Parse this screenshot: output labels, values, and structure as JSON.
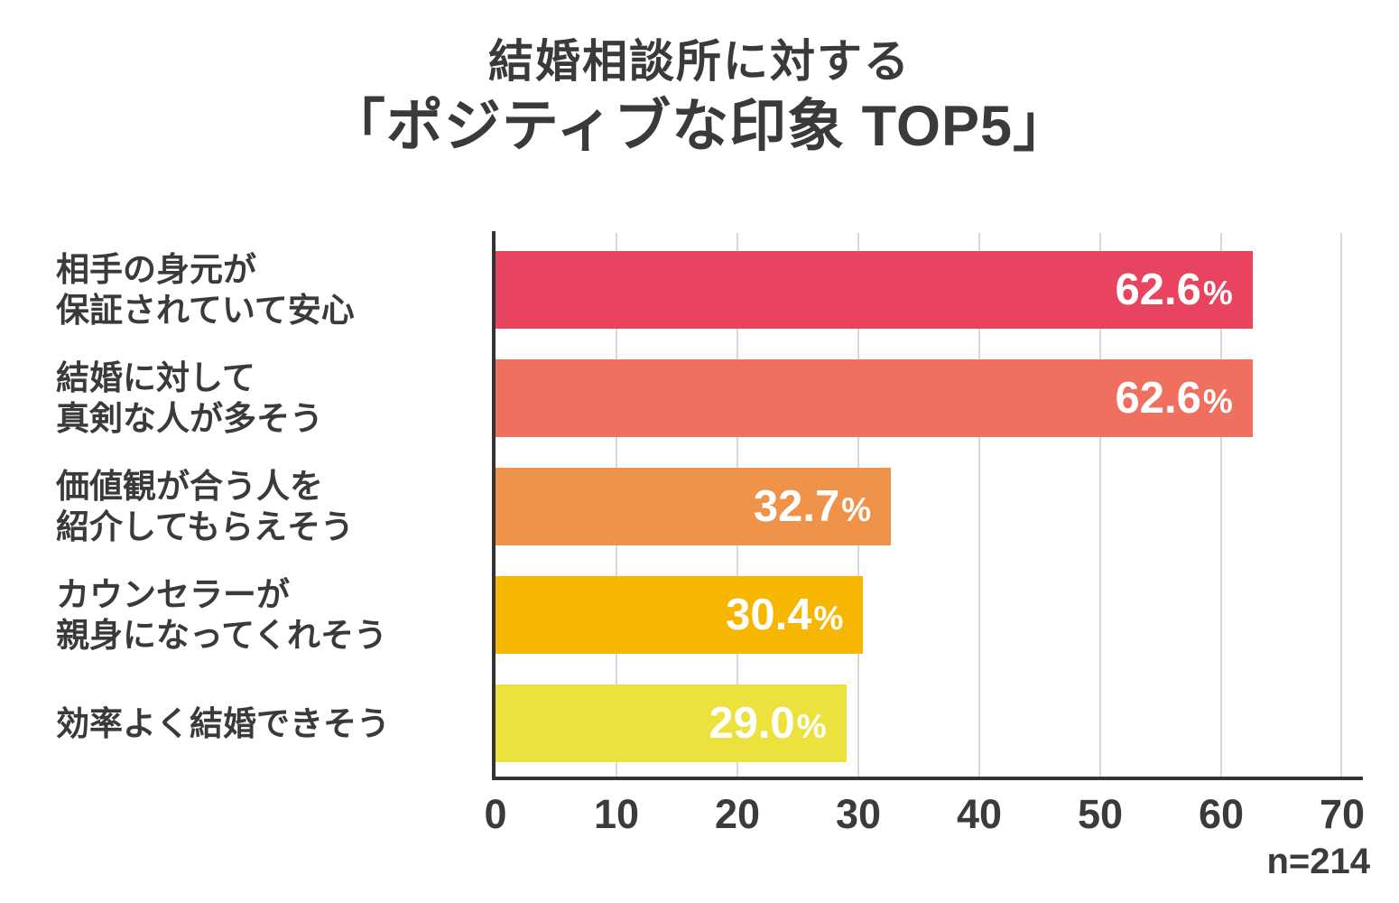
{
  "title": {
    "line1": "結婚相談所に対する",
    "line2": "「ポジティブな印象 TOP5」"
  },
  "footnote": "n=214",
  "colors": {
    "axis": "#333333",
    "gridline": "#d9d9d9",
    "text": "#3a3a3a",
    "value_label": "#ffffff"
  },
  "chart_data": {
    "type": "bar",
    "orientation": "horizontal",
    "title": "結婚相談所に対する「ポジティブな印象 TOP5」",
    "categories": [
      "相手の身元が保証されていて安心",
      "結婚に対して真剣な人が多そう",
      "価値観が合う人を紹介してもらえそう",
      "カウンセラーが親身になってくれそう",
      "効率よく結婚できそう"
    ],
    "values": [
      62.6,
      62.6,
      32.7,
      30.4,
      29.0
    ],
    "unit": "%",
    "rows": [
      {
        "label_lines": [
          "相手の身元が",
          "保証されていて安心"
        ],
        "value": 62.6,
        "value_text": "62.6",
        "color": "#e8435f"
      },
      {
        "label_lines": [
          "結婚に対して",
          "真剣な人が多そう"
        ],
        "value": 62.6,
        "value_text": "62.6",
        "color": "#f07060"
      },
      {
        "label_lines": [
          "価値観が合う人を",
          "紹介してもらえそう"
        ],
        "value": 32.7,
        "value_text": "32.7",
        "color": "#ee9349"
      },
      {
        "label_lines": [
          "カウンセラーが",
          "親身になってくれそう"
        ],
        "value": 30.4,
        "value_text": "30.4",
        "color": "#f7b602"
      },
      {
        "label_lines": [
          "効率よく結婚できそう"
        ],
        "value": 29.0,
        "value_text": "29.0",
        "color": "#ebe23d"
      }
    ],
    "x_ticks": [
      "0",
      "10",
      "20",
      "30",
      "40",
      "50",
      "60",
      "70"
    ],
    "xlim": [
      0,
      70
    ],
    "xlabel": "",
    "ylabel": "",
    "grid": true,
    "legend": false,
    "sample_note": "n=214"
  }
}
